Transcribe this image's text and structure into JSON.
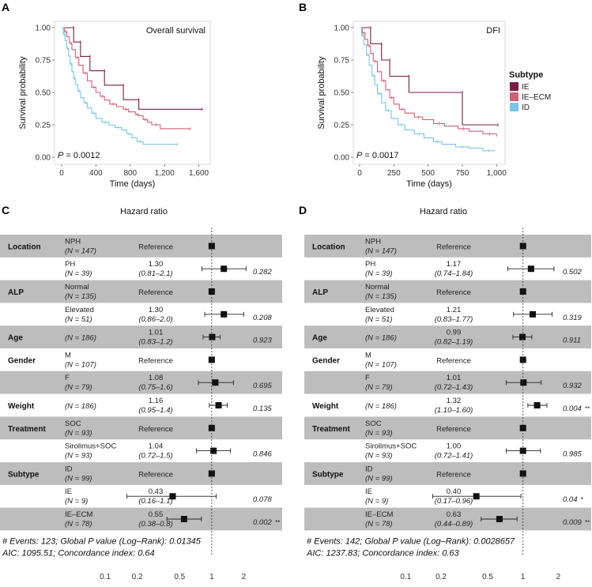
{
  "legend": {
    "title": "Subtype",
    "items": [
      {
        "label": "IE",
        "color": "#7b1c46"
      },
      {
        "label": "IE–ECM",
        "color": "#d45f74"
      },
      {
        "label": "ID",
        "color": "#76c7ea"
      }
    ]
  },
  "chart_data": [
    {
      "panel": "A",
      "type": "line",
      "title": "Overall survival",
      "xlabel": "Time (days)",
      "ylabel": "Survival probability",
      "xlim": [
        0,
        1650
      ],
      "ylim": [
        0,
        1
      ],
      "xticks": [
        0,
        400,
        800,
        1200,
        1600
      ],
      "xtick_labels": [
        "0",
        "400",
        "800",
        "1,200",
        "1,600"
      ],
      "yticks": [
        0,
        0.25,
        0.5,
        0.75,
        1
      ],
      "ytick_labels": [
        "0.00",
        "0.25",
        "0.50",
        "0.75",
        "1.00"
      ],
      "pvalue_label": "P",
      "pvalue_text": " = 0.0012",
      "series": [
        {
          "name": "IE",
          "step": [
            [
              0,
              1
            ],
            [
              140,
              1
            ],
            [
              140,
              0.889
            ],
            [
              220,
              0.889
            ],
            [
              220,
              0.778
            ],
            [
              330,
              0.778
            ],
            [
              330,
              0.667
            ],
            [
              500,
              0.667
            ],
            [
              500,
              0.556
            ],
            [
              720,
              0.556
            ],
            [
              720,
              0.444
            ],
            [
              900,
              0.444
            ],
            [
              900,
              0.37
            ],
            [
              1640,
              0.37
            ]
          ]
        },
        {
          "name": "IE–ECM",
          "step": [
            [
              0,
              1
            ],
            [
              30,
              0.97
            ],
            [
              60,
              0.93
            ],
            [
              90,
              0.88
            ],
            [
              120,
              0.83
            ],
            [
              160,
              0.77
            ],
            [
              200,
              0.71
            ],
            [
              250,
              0.65
            ],
            [
              300,
              0.59
            ],
            [
              350,
              0.54
            ],
            [
              400,
              0.5
            ],
            [
              450,
              0.47
            ],
            [
              500,
              0.44
            ],
            [
              560,
              0.41
            ],
            [
              640,
              0.39
            ],
            [
              720,
              0.37
            ],
            [
              780,
              0.35
            ],
            [
              860,
              0.33
            ],
            [
              900,
              0.32
            ],
            [
              950,
              0.29
            ],
            [
              1000,
              0.27
            ],
            [
              1050,
              0.25
            ],
            [
              1150,
              0.22
            ],
            [
              1500,
              0.22
            ]
          ]
        },
        {
          "name": "ID",
          "step": [
            [
              0,
              1
            ],
            [
              20,
              0.95
            ],
            [
              40,
              0.9
            ],
            [
              60,
              0.84
            ],
            [
              80,
              0.78
            ],
            [
              100,
              0.72
            ],
            [
              120,
              0.66
            ],
            [
              140,
              0.61
            ],
            [
              160,
              0.56
            ],
            [
              190,
              0.51
            ],
            [
              220,
              0.46
            ],
            [
              260,
              0.42
            ],
            [
              300,
              0.38
            ],
            [
              350,
              0.34
            ],
            [
              400,
              0.3
            ],
            [
              470,
              0.27
            ],
            [
              550,
              0.25
            ],
            [
              620,
              0.23
            ],
            [
              700,
              0.21
            ],
            [
              760,
              0.18
            ],
            [
              820,
              0.15
            ],
            [
              880,
              0.12
            ],
            [
              950,
              0.1
            ],
            [
              1350,
              0.1
            ]
          ]
        }
      ]
    },
    {
      "panel": "B",
      "type": "line",
      "title": "DFI",
      "xlabel": "Time (days)",
      "ylabel": "Survival probability",
      "xlim": [
        0,
        1010
      ],
      "ylim": [
        0,
        1
      ],
      "xticks": [
        0,
        250,
        500,
        750,
        1000
      ],
      "xtick_labels": [
        "0",
        "250",
        "500",
        "750",
        "1,000"
      ],
      "yticks": [
        0,
        0.25,
        0.5,
        0.75,
        1
      ],
      "ytick_labels": [
        "0.00",
        "0.25",
        "0.50",
        "0.75",
        "1.00"
      ],
      "pvalue_label": "P",
      "pvalue_text": " = 0.0017",
      "series": [
        {
          "name": "IE",
          "step": [
            [
              0,
              1
            ],
            [
              80,
              1
            ],
            [
              80,
              0.875
            ],
            [
              160,
              0.875
            ],
            [
              160,
              0.75
            ],
            [
              220,
              0.75
            ],
            [
              220,
              0.625
            ],
            [
              360,
              0.625
            ],
            [
              360,
              0.5
            ],
            [
              750,
              0.5
            ],
            [
              750,
              0.25
            ],
            [
              1010,
              0.25
            ]
          ]
        },
        {
          "name": "IE–ECM",
          "step": [
            [
              0,
              1
            ],
            [
              20,
              0.96
            ],
            [
              40,
              0.91
            ],
            [
              60,
              0.86
            ],
            [
              80,
              0.8
            ],
            [
              100,
              0.74
            ],
            [
              130,
              0.66
            ],
            [
              160,
              0.59
            ],
            [
              190,
              0.52
            ],
            [
              220,
              0.46
            ],
            [
              250,
              0.41
            ],
            [
              290,
              0.37
            ],
            [
              330,
              0.34
            ],
            [
              400,
              0.31
            ],
            [
              460,
              0.29
            ],
            [
              540,
              0.26
            ],
            [
              620,
              0.24
            ],
            [
              720,
              0.22
            ],
            [
              800,
              0.2
            ],
            [
              900,
              0.18
            ],
            [
              1000,
              0.16
            ]
          ]
        },
        {
          "name": "ID",
          "step": [
            [
              0,
              1
            ],
            [
              15,
              0.94
            ],
            [
              30,
              0.87
            ],
            [
              50,
              0.79
            ],
            [
              70,
              0.71
            ],
            [
              90,
              0.63
            ],
            [
              110,
              0.56
            ],
            [
              130,
              0.49
            ],
            [
              160,
              0.42
            ],
            [
              190,
              0.36
            ],
            [
              230,
              0.3
            ],
            [
              280,
              0.25
            ],
            [
              330,
              0.21
            ],
            [
              400,
              0.18
            ],
            [
              470,
              0.15
            ],
            [
              540,
              0.12
            ],
            [
              600,
              0.1
            ],
            [
              700,
              0.08
            ],
            [
              800,
              0.07
            ],
            [
              900,
              0.05
            ],
            [
              990,
              0.05
            ]
          ]
        }
      ]
    },
    {
      "panel": "C",
      "type": "forest",
      "title": "Hazard ratio",
      "xscale": "log",
      "xlim": [
        0.08,
        4
      ],
      "xticks": [
        0.1,
        0.2,
        0.5,
        1,
        2
      ],
      "xtick_labels": [
        "0.1",
        "0.2",
        "0.5",
        "1",
        "2"
      ],
      "rows": [
        {
          "var": "Location",
          "level": "NPH",
          "n": "(N = 147)",
          "hr_text": "Reference",
          "ci_text": "",
          "hr": 1,
          "lo": null,
          "hi": null,
          "p": "",
          "sig": "",
          "shade": true
        },
        {
          "var": "",
          "level": "PH",
          "n": "(N = 39)",
          "hr_text": "1.30",
          "ci_text": "(0.81–2.1)",
          "hr": 1.3,
          "lo": 0.81,
          "hi": 2.1,
          "p": "0.282",
          "sig": "",
          "shade": false
        },
        {
          "var": "ALP",
          "level": "Normal",
          "n": "(N = 135)",
          "hr_text": "Reference",
          "ci_text": "",
          "hr": 1,
          "lo": null,
          "hi": null,
          "p": "",
          "sig": "",
          "shade": true
        },
        {
          "var": "",
          "level": "Elevated",
          "n": "(N = 51)",
          "hr_text": "1.30",
          "ci_text": "(0.86–2.0)",
          "hr": 1.3,
          "lo": 0.86,
          "hi": 2.0,
          "p": "0.208",
          "sig": "",
          "shade": false
        },
        {
          "var": "Age",
          "level": "",
          "n": "(N = 186)",
          "hr_text": "1.01",
          "ci_text": "(0.83–1.2)",
          "hr": 1.01,
          "lo": 0.83,
          "hi": 1.2,
          "p": "0.923",
          "sig": "",
          "shade": true
        },
        {
          "var": "Gender",
          "level": "M",
          "n": "(N = 107)",
          "hr_text": "Reference",
          "ci_text": "",
          "hr": 1,
          "lo": null,
          "hi": null,
          "p": "",
          "sig": "",
          "shade": false
        },
        {
          "var": "",
          "level": "F",
          "n": "(N = 79)",
          "hr_text": "1.08",
          "ci_text": "(0.75–1.6)",
          "hr": 1.08,
          "lo": 0.75,
          "hi": 1.6,
          "p": "0.695",
          "sig": "",
          "shade": true
        },
        {
          "var": "Weight",
          "level": "",
          "n": "(N = 186)",
          "hr_text": "1.16",
          "ci_text": "(0.95–1.4)",
          "hr": 1.16,
          "lo": 0.95,
          "hi": 1.4,
          "p": "0.135",
          "sig": "",
          "shade": false
        },
        {
          "var": "Treatment",
          "level": "SOC",
          "n": "(N = 93)",
          "hr_text": "Reference",
          "ci_text": "",
          "hr": 1,
          "lo": null,
          "hi": null,
          "p": "",
          "sig": "",
          "shade": true
        },
        {
          "var": "",
          "level": "Sirolimus+SOC",
          "n": "(N = 93)",
          "hr_text": "1.04",
          "ci_text": "(0.72–1.5)",
          "hr": 1.04,
          "lo": 0.72,
          "hi": 1.5,
          "p": "0.846",
          "sig": "",
          "shade": false
        },
        {
          "var": "Subtype",
          "level": "ID",
          "n": "(N = 99)",
          "hr_text": "Reference",
          "ci_text": "",
          "hr": 1,
          "lo": null,
          "hi": null,
          "p": "",
          "sig": "",
          "shade": true
        },
        {
          "var": "",
          "level": "IE",
          "n": "(N = 9)",
          "hr_text": "0.43",
          "ci_text": "(0.16–1.1)",
          "hr": 0.43,
          "lo": 0.16,
          "hi": 1.1,
          "p": "0.078",
          "sig": "",
          "shade": false
        },
        {
          "var": "",
          "level": "IE–ECM",
          "n": "(N = 78)",
          "hr_text": "0.55",
          "ci_text": "(0.38–0.8)",
          "hr": 0.55,
          "lo": 0.38,
          "hi": 0.8,
          "p": "0.002",
          "sig": "**",
          "shade": true
        }
      ],
      "footer": [
        "# Events: 123; Global P value (Log–Rank): 0.01345",
        "AIC: 1095.51; Concordance index: 0.64"
      ]
    },
    {
      "panel": "D",
      "type": "forest",
      "title": "Hazard ratio",
      "xscale": "log",
      "xlim": [
        0.08,
        4
      ],
      "xticks": [
        0.1,
        0.2,
        0.5,
        1,
        2
      ],
      "xtick_labels": [
        "0.1",
        "0.2",
        "0.5",
        "1",
        "2"
      ],
      "rows": [
        {
          "var": "Location",
          "level": "NPH",
          "n": "(N = 147)",
          "hr_text": "Reference",
          "ci_text": "",
          "hr": 1,
          "lo": null,
          "hi": null,
          "p": "",
          "sig": "",
          "shade": true
        },
        {
          "var": "",
          "level": "PH",
          "n": "(N = 39)",
          "hr_text": "1.17",
          "ci_text": "(0.74–1.84)",
          "hr": 1.17,
          "lo": 0.74,
          "hi": 1.84,
          "p": "0.502",
          "sig": "",
          "shade": false
        },
        {
          "var": "ALP",
          "level": "Normal",
          "n": "(N = 135)",
          "hr_text": "Reference",
          "ci_text": "",
          "hr": 1,
          "lo": null,
          "hi": null,
          "p": "",
          "sig": "",
          "shade": true
        },
        {
          "var": "",
          "level": "Elevated",
          "n": "(N = 51)",
          "hr_text": "1.21",
          "ci_text": "(0.83–1.77)",
          "hr": 1.21,
          "lo": 0.83,
          "hi": 1.77,
          "p": "0.319",
          "sig": "",
          "shade": false
        },
        {
          "var": "Age",
          "level": "",
          "n": "(N = 186)",
          "hr_text": "0.99",
          "ci_text": "(0.82–1.19)",
          "hr": 0.99,
          "lo": 0.82,
          "hi": 1.19,
          "p": "0.911",
          "sig": "",
          "shade": true
        },
        {
          "var": "Gender",
          "level": "M",
          "n": "(N = 107)",
          "hr_text": "Reference",
          "ci_text": "",
          "hr": 1,
          "lo": null,
          "hi": null,
          "p": "",
          "sig": "",
          "shade": false
        },
        {
          "var": "",
          "level": "F",
          "n": "(N = 79)",
          "hr_text": "1.01",
          "ci_text": "(0.72–1.43)",
          "hr": 1.01,
          "lo": 0.72,
          "hi": 1.43,
          "p": "0.932",
          "sig": "",
          "shade": true
        },
        {
          "var": "Weight",
          "level": "",
          "n": "(N = 186)",
          "hr_text": "1.32",
          "ci_text": "(1.10–1.60)",
          "hr": 1.32,
          "lo": 1.1,
          "hi": 1.6,
          "p": "0.004",
          "sig": "**",
          "shade": false
        },
        {
          "var": "Treatment",
          "level": "SOC",
          "n": "(N = 93)",
          "hr_text": "Reference",
          "ci_text": "",
          "hr": 1,
          "lo": null,
          "hi": null,
          "p": "",
          "sig": "",
          "shade": true
        },
        {
          "var": "",
          "level": "Sirolimus+SOC",
          "n": "(N = 93)",
          "hr_text": "1.00",
          "ci_text": "(0.72–1.41)",
          "hr": 1.0,
          "lo": 0.72,
          "hi": 1.41,
          "p": "0.985",
          "sig": "",
          "shade": false
        },
        {
          "var": "Subtype",
          "level": "ID",
          "n": "(N = 99)",
          "hr_text": "Reference",
          "ci_text": "",
          "hr": 1,
          "lo": null,
          "hi": null,
          "p": "",
          "sig": "",
          "shade": true
        },
        {
          "var": "",
          "level": "IE",
          "n": "(N = 9)",
          "hr_text": "0.40",
          "ci_text": "(0.17–0.96)",
          "hr": 0.4,
          "lo": 0.17,
          "hi": 0.96,
          "p": "0.04",
          "sig": "*",
          "shade": false
        },
        {
          "var": "",
          "level": "IE–ECM",
          "n": "(N = 78)",
          "hr_text": "0.63",
          "ci_text": "(0.44–0.89)",
          "hr": 0.63,
          "lo": 0.44,
          "hi": 0.89,
          "p": "0.009",
          "sig": "**",
          "shade": true
        }
      ],
      "footer": [
        "# Events: 142; Global P value (Log–Rank): 0.0028657",
        "AIC: 1237.83; Concordance index: 0.63"
      ]
    }
  ]
}
